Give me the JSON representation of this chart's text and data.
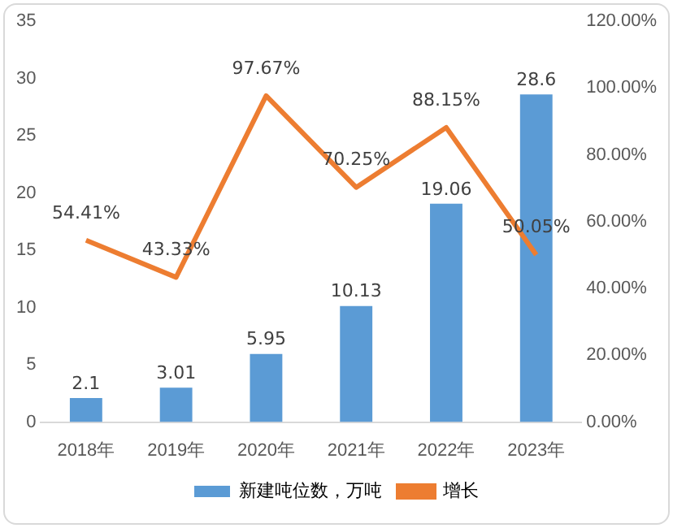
{
  "chart_data": {
    "type": "bar",
    "categories": [
      "2018年",
      "2019年",
      "2020年",
      "2021年",
      "2022年",
      "2023年"
    ],
    "series": [
      {
        "name": "新建吨位数，万吨",
        "color": "#5b9bd5",
        "values": [
          2.1,
          3.01,
          5.95,
          10.13,
          19.06,
          28.6
        ],
        "value_labels": [
          "2.1",
          "3.01",
          "5.95",
          "10.13",
          "19.06",
          "28.6"
        ]
      },
      {
        "name": "增长",
        "type": "line",
        "axis": "y2",
        "color": "#ed7d31",
        "values": [
          54.41,
          43.33,
          97.67,
          70.25,
          88.15,
          50.05
        ],
        "value_labels": [
          "54.41%",
          "43.33%",
          "97.67%",
          "70.25%",
          "88.15%",
          "50.05%"
        ]
      }
    ],
    "ylim": [
      0,
      35
    ],
    "yticks": [
      0,
      5,
      10,
      15,
      20,
      25,
      30,
      35
    ],
    "y2lim": [
      0,
      120
    ],
    "y2ticks": [
      {
        "value": 0,
        "label": "0.00%"
      },
      {
        "value": 20,
        "label": "20.00%"
      },
      {
        "value": 40,
        "label": "40.00%"
      },
      {
        "value": 60,
        "label": "60.00%"
      },
      {
        "value": 80,
        "label": "80.00%"
      },
      {
        "value": 100,
        "label": "100.00%"
      },
      {
        "value": 120,
        "label": "120.00%"
      }
    ],
    "grid": false,
    "legend": "bottom",
    "marker": "none",
    "line_style": "solid"
  }
}
